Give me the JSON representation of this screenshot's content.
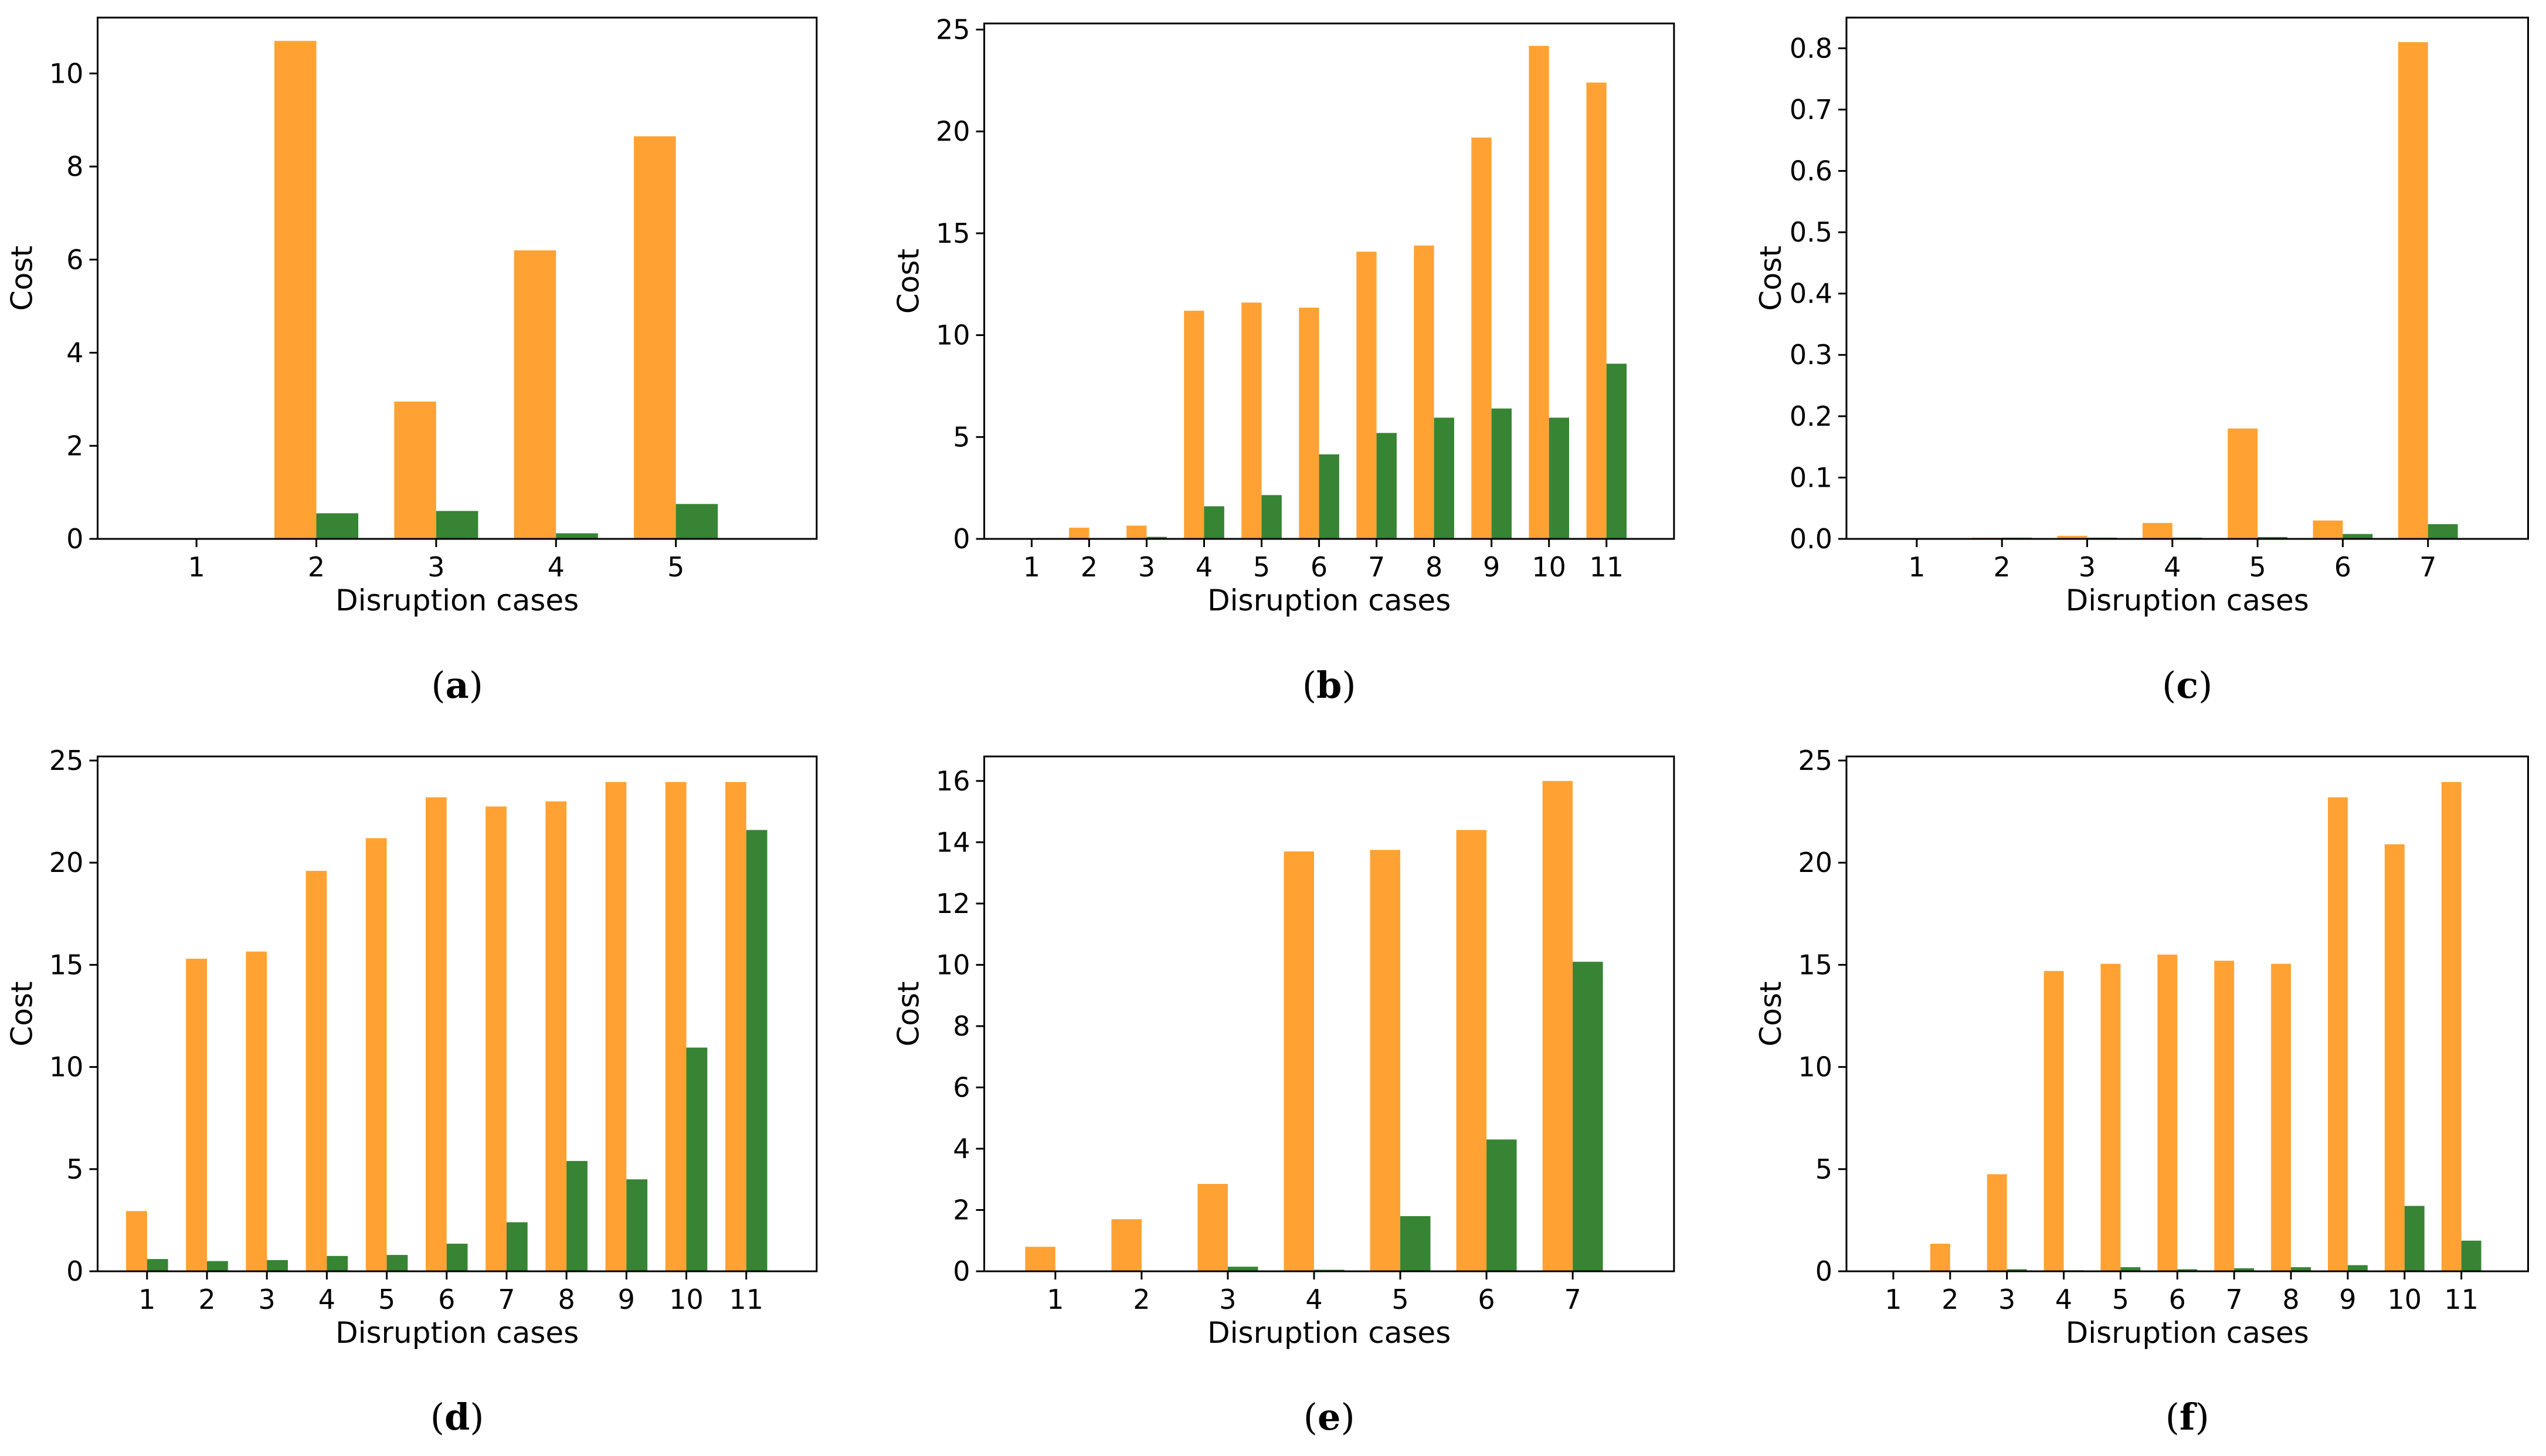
{
  "colors": {
    "series_a": "#ffa233",
    "series_b": "#368434",
    "axis": "#000000"
  },
  "chart_data": [
    {
      "type": "bar",
      "label": "a",
      "xlabel": "Disruption cases",
      "ylabel": "Cost",
      "categories": [
        "1",
        "2",
        "3",
        "4",
        "5"
      ],
      "ylim": [
        0,
        11.2
      ],
      "yticks": [
        0,
        2,
        4,
        6,
        8,
        10
      ],
      "series": [
        {
          "name": "orange",
          "values": [
            0,
            10.7,
            2.95,
            6.2,
            8.65
          ]
        },
        {
          "name": "green",
          "values": [
            0,
            0.55,
            0.6,
            0.12,
            0.75
          ]
        }
      ]
    },
    {
      "type": "bar",
      "label": "b",
      "xlabel": "Disruption cases",
      "ylabel": "Cost",
      "categories": [
        "1",
        "2",
        "3",
        "4",
        "5",
        "6",
        "7",
        "8",
        "9",
        "10",
        "11"
      ],
      "ylim": [
        0,
        25.3
      ],
      "yticks": [
        0,
        5,
        10,
        15,
        20,
        25
      ],
      "series": [
        {
          "name": "orange",
          "values": [
            0,
            0.55,
            0.65,
            11.2,
            11.6,
            11.35,
            14.1,
            14.4,
            19.7,
            24.2,
            22.4
          ]
        },
        {
          "name": "green",
          "values": [
            0,
            0,
            0.1,
            1.6,
            2.15,
            4.15,
            5.2,
            5.95,
            6.4,
            5.95,
            8.6
          ]
        }
      ]
    },
    {
      "type": "bar",
      "label": "c",
      "xlabel": "Disruption cases",
      "ylabel": "Cost",
      "categories": [
        "1",
        "2",
        "3",
        "4",
        "5",
        "6",
        "7"
      ],
      "ylim": [
        0,
        0.85
      ],
      "yticks": [
        0.0,
        0.1,
        0.2,
        0.3,
        0.4,
        0.5,
        0.6,
        0.7,
        0.8
      ],
      "series": [
        {
          "name": "orange",
          "values": [
            0,
            0.002,
            0.005,
            0.026,
            0.18,
            0.03,
            0.81
          ]
        },
        {
          "name": "green",
          "values": [
            0,
            0.002,
            0.002,
            0.002,
            0.003,
            0.008,
            0.024
          ]
        }
      ]
    },
    {
      "type": "bar",
      "label": "d",
      "xlabel": "Disruption cases",
      "ylabel": "Cost",
      "categories": [
        "1",
        "2",
        "3",
        "4",
        "5",
        "6",
        "7",
        "8",
        "9",
        "10",
        "11"
      ],
      "ylim": [
        0,
        25.2
      ],
      "yticks": [
        0,
        5,
        10,
        15,
        20,
        25
      ],
      "series": [
        {
          "name": "orange",
          "values": [
            2.95,
            15.3,
            15.65,
            19.6,
            21.2,
            23.2,
            22.75,
            23.0,
            23.95,
            23.95,
            23.95
          ]
        },
        {
          "name": "green",
          "values": [
            0.6,
            0.5,
            0.55,
            0.75,
            0.8,
            1.35,
            2.4,
            5.4,
            4.5,
            10.95,
            21.6
          ]
        }
      ]
    },
    {
      "type": "bar",
      "label": "e",
      "xlabel": "Disruption cases",
      "ylabel": "Cost",
      "categories": [
        "1",
        "2",
        "3",
        "4",
        "5",
        "6",
        "7"
      ],
      "ylim": [
        0,
        16.8
      ],
      "yticks": [
        0,
        2,
        4,
        6,
        8,
        10,
        12,
        14,
        16
      ],
      "series": [
        {
          "name": "orange",
          "values": [
            0.8,
            1.7,
            2.85,
            13.7,
            13.75,
            14.4,
            16.0
          ]
        },
        {
          "name": "green",
          "values": [
            0,
            0,
            0.15,
            0.05,
            1.8,
            4.3,
            10.1
          ]
        }
      ]
    },
    {
      "type": "bar",
      "label": "f",
      "xlabel": "Disruption cases",
      "ylabel": "Cost",
      "categories": [
        "1",
        "2",
        "3",
        "4",
        "5",
        "6",
        "7",
        "8",
        "9",
        "10",
        "11"
      ],
      "ylim": [
        0,
        25.2
      ],
      "yticks": [
        0,
        5,
        10,
        15,
        20,
        25
      ],
      "series": [
        {
          "name": "orange",
          "values": [
            0,
            1.35,
            4.75,
            14.7,
            15.05,
            15.5,
            15.2,
            15.05,
            23.2,
            20.9,
            23.95
          ]
        },
        {
          "name": "green",
          "values": [
            0,
            0,
            0.1,
            0.05,
            0.2,
            0.1,
            0.15,
            0.2,
            0.3,
            3.2,
            1.5
          ]
        }
      ]
    }
  ]
}
